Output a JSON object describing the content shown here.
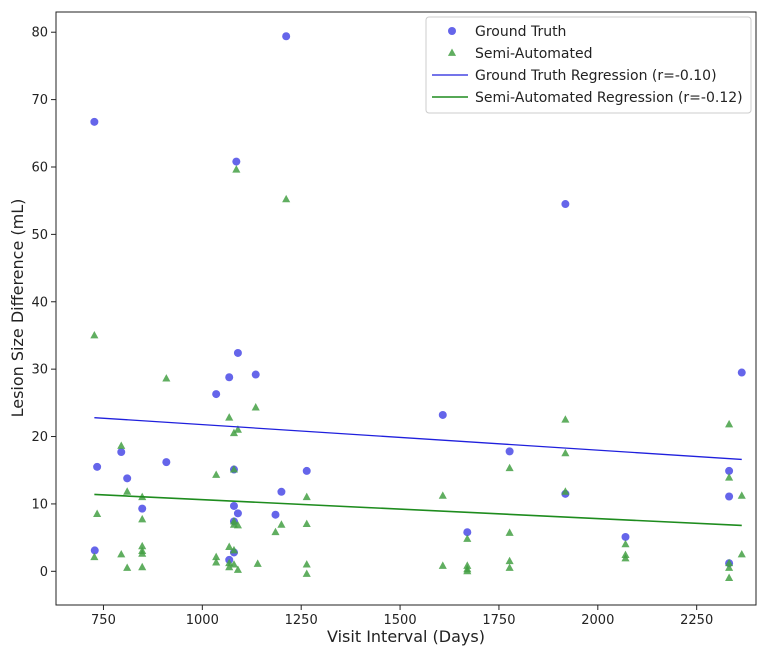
{
  "chart_data": {
    "type": "scatter",
    "title": "",
    "xlabel": "Visit Interval (Days)",
    "ylabel": "Lesion Size Difference (mL)",
    "xlim": [
      630,
      2400
    ],
    "ylim": [
      -5,
      83
    ],
    "xticks": [
      750,
      1000,
      1250,
      1500,
      1750,
      2000,
      2250
    ],
    "yticks": [
      0,
      10,
      20,
      30,
      40,
      50,
      60,
      70,
      80
    ],
    "grid": false,
    "legend_position": "top-right",
    "series": [
      {
        "name": "Ground Truth",
        "kind": "scatter",
        "marker": "circle",
        "color": "#4a4ae6",
        "points": [
          [
            727,
            66.7
          ],
          [
            728,
            3.1
          ],
          [
            734,
            15.5
          ],
          [
            795,
            17.7
          ],
          [
            810,
            13.8
          ],
          [
            848,
            9.3
          ],
          [
            909,
            16.2
          ],
          [
            1035,
            26.3
          ],
          [
            1068,
            28.8
          ],
          [
            1068,
            1.7
          ],
          [
            1080,
            9.7
          ],
          [
            1080,
            7.4
          ],
          [
            1080,
            15.1
          ],
          [
            1080,
            2.8
          ],
          [
            1086,
            60.8
          ],
          [
            1090,
            32.4
          ],
          [
            1090,
            8.6
          ],
          [
            1135,
            29.2
          ],
          [
            1185,
            8.4
          ],
          [
            1200,
            11.8
          ],
          [
            1212,
            79.4
          ],
          [
            1264,
            14.9
          ],
          [
            1608,
            23.2
          ],
          [
            1670,
            5.8
          ],
          [
            1777,
            17.8
          ],
          [
            1918,
            54.5
          ],
          [
            1918,
            11.5
          ],
          [
            2070,
            5.1
          ],
          [
            2332,
            14.9
          ],
          [
            2332,
            11.1
          ],
          [
            2332,
            1.2
          ],
          [
            2364,
            29.5
          ]
        ]
      },
      {
        "name": "Semi-Automated",
        "kind": "scatter",
        "marker": "triangle",
        "color": "#44a044",
        "points": [
          [
            727,
            35.0
          ],
          [
            727,
            2.1
          ],
          [
            734,
            8.5
          ],
          [
            795,
            18.6
          ],
          [
            795,
            2.5
          ],
          [
            810,
            11.8
          ],
          [
            810,
            0.5
          ],
          [
            848,
            11.0
          ],
          [
            848,
            7.7
          ],
          [
            848,
            3.7
          ],
          [
            848,
            3.0
          ],
          [
            848,
            2.6
          ],
          [
            848,
            0.6
          ],
          [
            909,
            28.6
          ],
          [
            1035,
            14.3
          ],
          [
            1035,
            2.1
          ],
          [
            1035,
            1.3
          ],
          [
            1068,
            22.8
          ],
          [
            1068,
            3.6
          ],
          [
            1068,
            1.2
          ],
          [
            1068,
            0.6
          ],
          [
            1080,
            20.5
          ],
          [
            1080,
            15.1
          ],
          [
            1080,
            7.4
          ],
          [
            1080,
            6.9
          ],
          [
            1080,
            3.1
          ],
          [
            1080,
            1.0
          ],
          [
            1086,
            59.6
          ],
          [
            1090,
            21.0
          ],
          [
            1090,
            6.8
          ],
          [
            1090,
            0.2
          ],
          [
            1135,
            24.3
          ],
          [
            1140,
            1.1
          ],
          [
            1185,
            5.8
          ],
          [
            1200,
            6.9
          ],
          [
            1212,
            55.2
          ],
          [
            1264,
            11.0
          ],
          [
            1264,
            7.0
          ],
          [
            1264,
            1.0
          ],
          [
            1264,
            -0.4
          ],
          [
            1608,
            11.2
          ],
          [
            1608,
            0.8
          ],
          [
            1670,
            4.8
          ],
          [
            1670,
            0.8
          ],
          [
            1670,
            0.3
          ],
          [
            1670,
            0.0
          ],
          [
            1777,
            15.3
          ],
          [
            1777,
            5.7
          ],
          [
            1777,
            1.5
          ],
          [
            1777,
            0.5
          ],
          [
            1918,
            22.5
          ],
          [
            1918,
            17.5
          ],
          [
            1918,
            11.8
          ],
          [
            2070,
            4.0
          ],
          [
            2070,
            2.4
          ],
          [
            2070,
            1.9
          ],
          [
            2332,
            21.8
          ],
          [
            2332,
            13.9
          ],
          [
            2332,
            1.2
          ],
          [
            2332,
            0.5
          ],
          [
            2332,
            -1.0
          ],
          [
            2364,
            11.2
          ],
          [
            2364,
            2.5
          ]
        ]
      },
      {
        "name": "Ground Truth Regression (r=-0.10)",
        "kind": "line",
        "color": "#2020dd",
        "points": [
          [
            727,
            22.8
          ],
          [
            2364,
            16.6
          ]
        ]
      },
      {
        "name": "Semi-Automated Regression (r=-0.12)",
        "kind": "line",
        "color": "#1e8c1e",
        "points": [
          [
            727,
            11.4
          ],
          [
            2364,
            6.8
          ]
        ]
      }
    ]
  }
}
